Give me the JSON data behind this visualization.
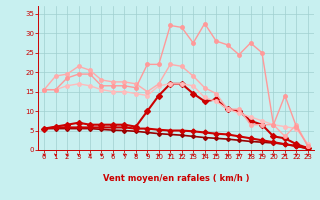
{
  "background_color": "#c8f0f0",
  "grid_color": "#a0d0d0",
  "xlabel": "Vent moyen/en rafales ( km/h )",
  "xlabel_color": "#cc0000",
  "tick_color": "#cc0000",
  "ylabel_ticks": [
    0,
    5,
    10,
    15,
    20,
    25,
    30,
    35
  ],
  "xticks": [
    0,
    1,
    2,
    3,
    4,
    5,
    6,
    7,
    8,
    9,
    10,
    11,
    12,
    13,
    14,
    15,
    16,
    17,
    18,
    19,
    20,
    21,
    22,
    23
  ],
  "xlim": [
    -0.5,
    23.5
  ],
  "ylim": [
    0,
    37
  ],
  "series": [
    {
      "x": [
        0,
        1,
        2,
        3,
        4,
        5,
        6,
        7,
        8,
        9,
        10,
        11,
        12,
        13,
        14,
        15,
        16,
        17,
        18,
        19,
        20,
        21,
        22,
        23
      ],
      "y": [
        5.5,
        5.5,
        5.5,
        5.5,
        5.5,
        5.3,
        5.1,
        5.0,
        4.8,
        4.5,
        4.2,
        4.0,
        3.8,
        3.5,
        3.2,
        3.0,
        2.8,
        2.5,
        2.2,
        2.0,
        1.8,
        1.5,
        1.0,
        0.3
      ],
      "color": "#990000",
      "linewidth": 1.2,
      "marker": "D",
      "markersize": 2.0,
      "alpha": 1.0
    },
    {
      "x": [
        0,
        1,
        2,
        3,
        4,
        5,
        6,
        7,
        8,
        9,
        10,
        11,
        12,
        13,
        14,
        15,
        16,
        17,
        18,
        19,
        20,
        21,
        22,
        23
      ],
      "y": [
        5.5,
        5.8,
        5.8,
        5.8,
        5.8,
        5.8,
        5.8,
        5.8,
        5.5,
        5.5,
        5.2,
        5.0,
        5.0,
        4.8,
        4.5,
        4.2,
        4.0,
        3.5,
        3.0,
        2.5,
        2.0,
        1.5,
        1.0,
        0.5
      ],
      "color": "#cc0000",
      "linewidth": 1.5,
      "marker": "D",
      "markersize": 2.5,
      "alpha": 1.0
    },
    {
      "x": [
        0,
        1,
        2,
        3,
        4,
        5,
        6,
        7,
        8,
        9,
        10,
        11,
        12,
        13,
        14,
        15,
        16,
        17,
        18,
        19,
        20,
        21,
        22,
        23
      ],
      "y": [
        5.5,
        6.0,
        6.5,
        7.0,
        6.5,
        6.5,
        6.5,
        6.5,
        6.0,
        10.0,
        14.0,
        17.0,
        17.0,
        14.5,
        12.5,
        13.0,
        10.5,
        10.0,
        7.5,
        6.5,
        3.5,
        3.0,
        1.5,
        0.5
      ],
      "color": "#cc0000",
      "linewidth": 1.5,
      "marker": "D",
      "markersize": 3,
      "alpha": 1.0
    },
    {
      "x": [
        0,
        1,
        2,
        3,
        4,
        5,
        6,
        7,
        8,
        9,
        10,
        11,
        12,
        13,
        14,
        15,
        16,
        17,
        18,
        19,
        20,
        21,
        22,
        23
      ],
      "y": [
        15.5,
        15.5,
        16.5,
        17.0,
        16.5,
        15.5,
        15.0,
        15.0,
        14.5,
        14.0,
        16.5,
        17.0,
        17.0,
        16.5,
        13.5,
        12.5,
        10.5,
        9.5,
        8.5,
        7.5,
        6.5,
        6.0,
        5.5,
        1.5
      ],
      "color": "#ffbbbb",
      "linewidth": 1.0,
      "marker": "o",
      "markersize": 2.5,
      "alpha": 1.0
    },
    {
      "x": [
        0,
        1,
        2,
        3,
        4,
        5,
        6,
        7,
        8,
        9,
        10,
        11,
        12,
        13,
        14,
        15,
        16,
        17,
        18,
        19,
        20,
        21,
        22,
        23
      ],
      "y": [
        15.5,
        19.0,
        19.5,
        21.5,
        20.5,
        18.0,
        17.5,
        17.5,
        17.0,
        15.0,
        17.0,
        22.0,
        21.5,
        19.0,
        16.0,
        14.5,
        10.5,
        10.5,
        6.5,
        6.5,
        6.5,
        3.5,
        6.5,
        1.0
      ],
      "color": "#ffaaaa",
      "linewidth": 1.0,
      "marker": "o",
      "markersize": 2.5,
      "alpha": 1.0
    },
    {
      "x": [
        0,
        1,
        2,
        3,
        4,
        5,
        6,
        7,
        8,
        9,
        10,
        11,
        12,
        13,
        14,
        15,
        16,
        17,
        18,
        19,
        20,
        21,
        22,
        23
      ],
      "y": [
        15.5,
        15.5,
        18.5,
        19.5,
        19.5,
        16.5,
        16.5,
        16.5,
        16.0,
        22.0,
        22.0,
        32.0,
        31.5,
        27.5,
        32.5,
        28.0,
        27.0,
        24.5,
        27.5,
        25.0,
        6.5,
        14.0,
        6.0,
        1.0
      ],
      "color": "#ff9999",
      "linewidth": 1.0,
      "marker": "o",
      "markersize": 2.5,
      "alpha": 1.0
    }
  ],
  "arrow_color": "#cc0000",
  "arrow_angles": [
    225,
    225,
    210,
    200,
    210,
    220,
    220,
    190,
    180,
    190,
    190,
    180,
    190,
    210,
    200,
    190,
    200,
    210,
    210,
    220,
    210,
    210,
    220,
    210
  ]
}
